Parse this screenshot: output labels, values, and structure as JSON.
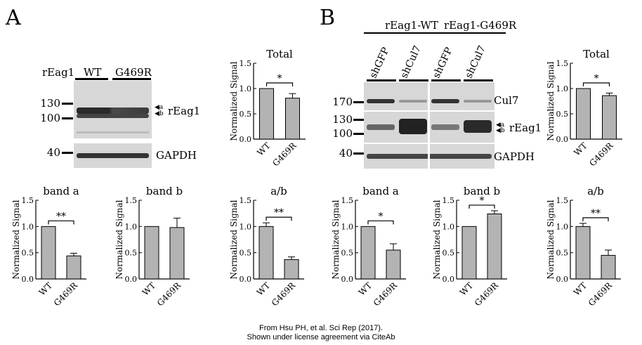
{
  "panels": {
    "a": "A",
    "b": "B"
  },
  "blotA": {
    "row_label": "rEag1",
    "groups": [
      "WT",
      "G469R"
    ],
    "markers_top": [
      "130",
      "100"
    ],
    "marker_bottom": "40",
    "band_labels": {
      "a": "a",
      "b": "b"
    },
    "protein": "rEag1",
    "loading": "GAPDH"
  },
  "blotB": {
    "groups": [
      "rEag1-WT",
      "rEag1-G469R"
    ],
    "lanes": [
      "shGFP",
      "shCul7",
      "shGFP",
      "shCul7"
    ],
    "markers": [
      "170",
      "130",
      "100",
      "40"
    ],
    "band_labels": {
      "a": "a",
      "b": "b"
    },
    "labels": {
      "cul7": "Cul7",
      "protein": "rEag1",
      "loading": "GAPDH"
    }
  },
  "chart_data": [
    {
      "id": "A-total",
      "type": "bar",
      "title": "Total",
      "ylabel": "Normalized Signal",
      "categories": [
        "WT",
        "G469R"
      ],
      "values": [
        1.0,
        0.81
      ],
      "errors": [
        0,
        0.09
      ],
      "ylim": [
        0,
        1.5
      ],
      "yticks": [
        "0.0",
        "0.5",
        "1.0",
        "1.5"
      ],
      "sig": "*"
    },
    {
      "id": "A-band-a",
      "type": "bar",
      "title": "band a",
      "ylabel": "Normalized Signal",
      "categories": [
        "WT",
        "G469R"
      ],
      "values": [
        1.0,
        0.44
      ],
      "errors": [
        0,
        0.05
      ],
      "ylim": [
        0,
        1.5
      ],
      "yticks": [
        "0.0",
        "0.5",
        "1.0",
        "1.5"
      ],
      "sig": "**"
    },
    {
      "id": "A-band-b",
      "type": "bar",
      "title": "band b",
      "ylabel": "Normalized Signal",
      "categories": [
        "WT",
        "G469R"
      ],
      "values": [
        1.0,
        0.98
      ],
      "errors": [
        0,
        0.18
      ],
      "ylim": [
        0,
        1.5
      ],
      "yticks": [
        "0.0",
        "0.5",
        "1.0",
        "1.5"
      ],
      "sig": ""
    },
    {
      "id": "A-ab",
      "type": "bar",
      "title": "a/b",
      "ylabel": "Normalized Signal",
      "categories": [
        "WT",
        "G469R"
      ],
      "values": [
        1.0,
        0.37
      ],
      "errors": [
        0.07,
        0.05
      ],
      "ylim": [
        0,
        1.5
      ],
      "yticks": [
        "0.0",
        "0.5",
        "1.0",
        "1.5"
      ],
      "sig": "**"
    },
    {
      "id": "B-band-a",
      "type": "bar",
      "title": "band a",
      "ylabel": "Normalized Signal",
      "categories": [
        "WT",
        "G469R"
      ],
      "values": [
        1.0,
        0.55
      ],
      "errors": [
        0,
        0.12
      ],
      "ylim": [
        0,
        1.5
      ],
      "yticks": [
        "0.0",
        "0.5",
        "1.0",
        "1.5"
      ],
      "sig": "*"
    },
    {
      "id": "B-band-b",
      "type": "bar",
      "title": "band b",
      "ylabel": "Normalized Signal",
      "categories": [
        "WT",
        "G469R"
      ],
      "values": [
        1.0,
        1.24
      ],
      "errors": [
        0,
        0.06
      ],
      "ylim": [
        0,
        1.5
      ],
      "yticks": [
        "0.0",
        "0.5",
        "1.0",
        "1.5"
      ],
      "sig": "*"
    },
    {
      "id": "B-total",
      "type": "bar",
      "title": "Total",
      "ylabel": "Normalized Signal",
      "categories": [
        "WT",
        "G469R"
      ],
      "values": [
        1.0,
        0.86
      ],
      "errors": [
        0,
        0.05
      ],
      "ylim": [
        0,
        1.5
      ],
      "yticks": [
        "0.0",
        "0.5",
        "1.0",
        "1.5"
      ],
      "sig": "*"
    },
    {
      "id": "B-ab",
      "type": "bar",
      "title": "a/b",
      "ylabel": "Normalized Signal",
      "categories": [
        "WT",
        "G469R"
      ],
      "values": [
        1.0,
        0.45
      ],
      "errors": [
        0.06,
        0.1
      ],
      "ylim": [
        0,
        1.5
      ],
      "yticks": [
        "0.0",
        "0.5",
        "1.0",
        "1.5"
      ],
      "sig": "**"
    }
  ],
  "credit": {
    "line1": "From Hsu PH, et al. Sci Rep (2017).",
    "line2": "Shown under license agreement via CiteAb"
  }
}
